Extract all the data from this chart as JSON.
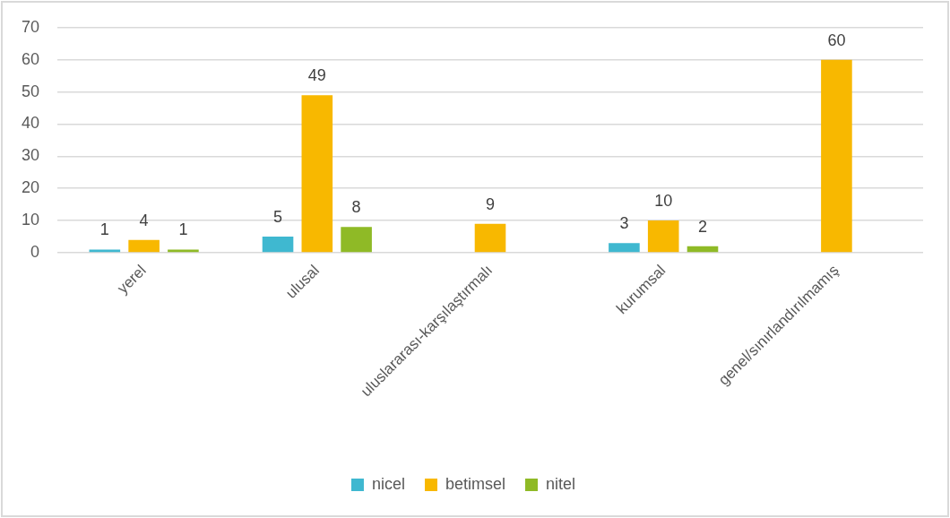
{
  "chart_data": {
    "type": "bar",
    "categories": [
      "yerel",
      "ulusal",
      "uluslararası-karşılaştırmalı",
      "kurumsal",
      "genel/sınırlandırılmamış"
    ],
    "series": [
      {
        "name": "nicel",
        "color": "#3fb8d0",
        "values": [
          1,
          5,
          null,
          3,
          null
        ]
      },
      {
        "name": "betimsel",
        "color": "#f8b800",
        "values": [
          4,
          49,
          9,
          10,
          60
        ]
      },
      {
        "name": "nitel",
        "color": "#8fba26",
        "values": [
          1,
          8,
          null,
          2,
          null
        ]
      }
    ],
    "ylim": [
      0,
      70
    ],
    "yticks": [
      0,
      10,
      20,
      30,
      40,
      50,
      60,
      70
    ],
    "grid": "y",
    "legend": "bottom",
    "data_labels": true
  }
}
